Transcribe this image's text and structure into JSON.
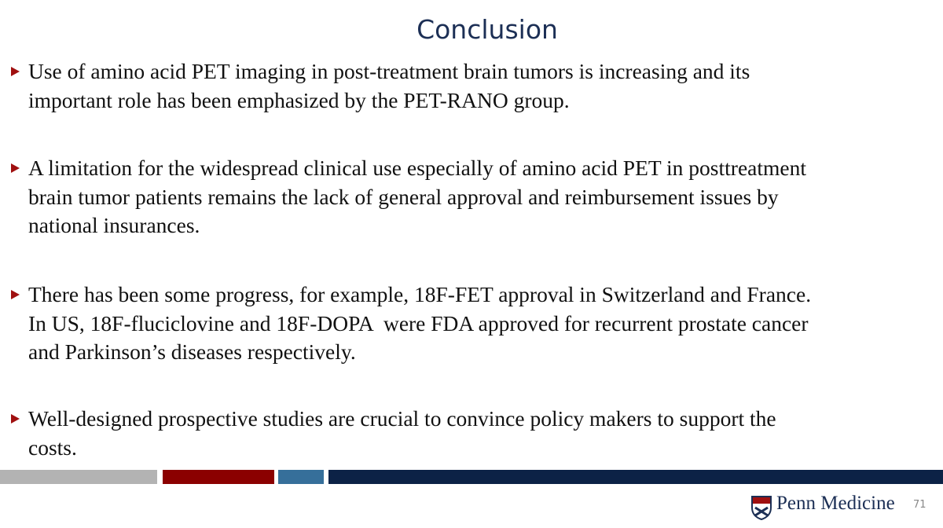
{
  "slide": {
    "title": "Conclusion",
    "bullets": [
      {
        "lines": [
          "Use of amino acid PET imaging in post-treatment brain tumors is increasing and its",
          "important role has been emphasized by the PET-RANO group."
        ]
      },
      {
        "lines": [
          "A limitation for the widespread clinical use especially of amino acid PET in posttreatment",
          "brain tumor patients remains the lack of general approval and reimbursement issues by",
          "national insurances."
        ]
      },
      {
        "lines": [
          "There has been some progress, for example, 18F-FET approval in Switzerland and France.",
          "In US, 18F-fluciclovine and 18F-DOPA  were FDA approved for recurrent prostate cancer",
          "and Parkinson’s diseases respectively."
        ]
      },
      {
        "lines": [
          "Well-designed prospective studies are crucial to convince policy makers to support the",
          "costs."
        ]
      }
    ],
    "footer": {
      "brand": "Penn Medicine",
      "page_number": "71"
    }
  }
}
